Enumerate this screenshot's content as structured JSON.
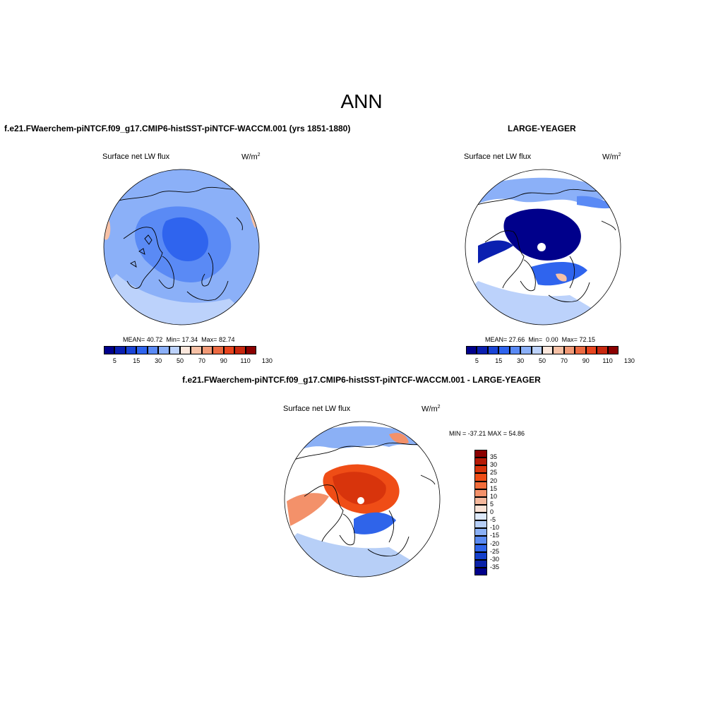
{
  "figure": {
    "title": "ANN"
  },
  "panels": [
    {
      "case_title": "f.e21.FWaerchem-piNTCF.f09_g17.CMIP6-histSST-piNTCF-WACCM.001 (yrs 1851-1880)",
      "field_label": "Surface net LW flux",
      "units": "W/m",
      "units_exponent": "2",
      "stats": {
        "mean_label": "MEAN=",
        "mean": "40.72",
        "min_label": "Min=",
        "min": "17.34",
        "max_label": "Max=",
        "max": "82.74"
      }
    },
    {
      "case_title": "LARGE-YEAGER",
      "field_label": "Surface net LW flux",
      "units": "W/m",
      "units_exponent": "2",
      "stats": {
        "mean_label": "MEAN=",
        "mean": "27.66",
        "min_label": "Min=",
        "min": "0.00",
        "max_label": "Max=",
        "max": "72.15"
      }
    },
    {
      "case_title": "f.e21.FWaerchem-piNTCF.f09_g17.CMIP6-histSST-piNTCF-WACCM.001 - LARGE-YEAGER",
      "field_label": "Surface net LW flux",
      "units": "W/m",
      "units_exponent": "2",
      "stats_text": "MIN = -37.21 MAX =  54.86"
    }
  ],
  "colorbars": {
    "absolute": {
      "tick_labels": [
        "5",
        "15",
        "30",
        "50",
        "70",
        "90",
        "110",
        "130"
      ],
      "colors": [
        "#00008b",
        "#0a1fb0",
        "#1a44d6",
        "#2f64ee",
        "#5a8af5",
        "#8bb0f8",
        "#bcd2fb",
        "#fbe7dc",
        "#f6c1a6",
        "#f19a77",
        "#ec6a42",
        "#e8451f",
        "#c8280f",
        "#8b0000"
      ]
    },
    "difference": {
      "tick_labels": [
        "35",
        "30",
        "25",
        "20",
        "15",
        "10",
        "5",
        "0",
        "-5",
        "-10",
        "-15",
        "-20",
        "-25",
        "-30",
        "-35"
      ],
      "colors": [
        "#8b0000",
        "#b51a06",
        "#d8340c",
        "#ef4d16",
        "#f26d3b",
        "#f3916a",
        "#f5b89c",
        "#fbe3d6",
        "#dde9fb",
        "#b7cff7",
        "#8bb0f5",
        "#5a8af2",
        "#2f64ea",
        "#1540cc",
        "#0a22a8",
        "#00008b"
      ]
    }
  },
  "chart_data": {
    "type": "heatmap",
    "projection": "north polar stereographic",
    "maps": [
      {
        "name": "f.e21.FWaerchem-piNTCF.f09_g17.CMIP6-histSST-piNTCF-WACCM.001 (yrs 1851-1880)",
        "mean": 40.72,
        "min": 17.34,
        "max": 82.74,
        "levels": [
          5,
          15,
          30,
          50,
          70,
          90,
          110,
          130
        ]
      },
      {
        "name": "LARGE-YEAGER",
        "mean": 27.66,
        "min": 0.0,
        "max": 72.15,
        "levels": [
          5,
          15,
          30,
          50,
          70,
          90,
          110,
          130
        ]
      },
      {
        "name": "f.e21.FWaerchem-piNTCF.f09_g17.CMIP6-histSST-piNTCF-WACCM.001 - LARGE-YEAGER",
        "min": -37.21,
        "max": 54.86,
        "levels": [
          -35,
          -30,
          -25,
          -20,
          -15,
          -10,
          -5,
          0,
          5,
          10,
          15,
          20,
          25,
          30,
          35
        ]
      }
    ]
  }
}
